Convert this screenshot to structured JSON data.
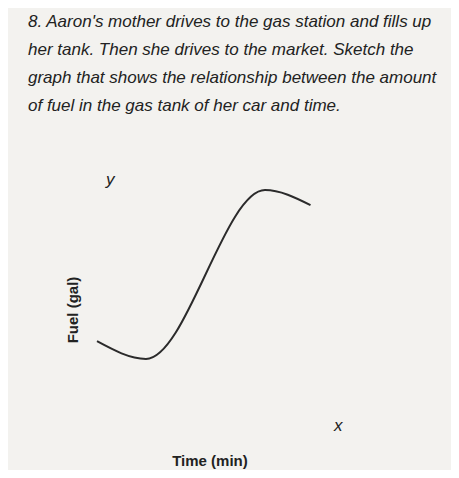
{
  "chart_data": {
    "type": "line",
    "title": "8. Aaron's mother drives to the gas station and fills up her tank. Then she drives to the market. Sketch the graph that shows the relationship between the amount of fuel in the gas tank of her car and time.",
    "x_label": "Time (min)",
    "y_label": "Fuel (gal)",
    "annotations": [
      "y",
      "x"
    ],
    "x": [
      0.2,
      1.6,
      5.0,
      6.3
    ],
    "values": [
      3.8,
      3.1,
      9.8,
      9.2
    ],
    "xlim": [
      0,
      10
    ],
    "ylim": [
      0,
      10
    ],
    "tick_labels": false,
    "grid": false,
    "color": "#2b2b2b",
    "marker": "none",
    "line_style": "solid"
  }
}
